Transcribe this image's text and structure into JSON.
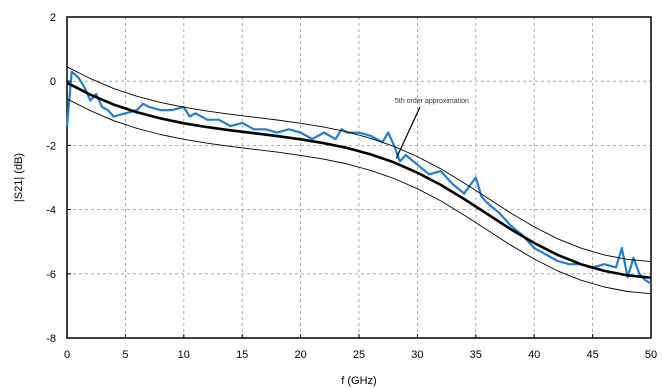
{
  "chart_data": {
    "type": "line",
    "title": "",
    "xlabel": "f (GHz)",
    "ylabel": "|S21| (dB)",
    "xlim": [
      0,
      50
    ],
    "ylim": [
      -8,
      2
    ],
    "xticks": [
      0,
      5,
      10,
      15,
      20,
      25,
      30,
      35,
      40,
      45,
      50
    ],
    "yticks": [
      -8,
      -6,
      -4,
      -2,
      0,
      2
    ],
    "grid": true,
    "annotation": {
      "text": "5th order approximation",
      "x": 28.2,
      "y": -2.4
    },
    "series": [
      {
        "name": "",
        "color": "#1f7fd6",
        "style": "measured",
        "x": [
          0,
          0.4,
          1,
          1.5,
          2,
          2.5,
          3,
          3.5,
          4,
          5,
          6,
          6.5,
          7,
          8,
          9,
          10,
          10.5,
          11,
          12,
          13,
          14,
          15,
          16,
          17,
          18,
          19,
          20,
          21,
          22,
          23,
          23.5,
          24,
          25,
          26,
          27,
          27.5,
          28,
          28.5,
          29,
          30,
          31,
          32,
          33,
          34,
          35,
          35.5,
          36,
          37,
          38,
          39,
          40,
          41,
          42,
          43,
          44,
          45,
          46,
          47,
          47.5,
          48,
          48.5,
          49,
          49.5,
          50
        ],
        "y": [
          -1.4,
          0.3,
          0.1,
          -0.2,
          -0.6,
          -0.4,
          -0.8,
          -0.9,
          -1.1,
          -1.0,
          -0.9,
          -0.7,
          -0.8,
          -0.9,
          -0.9,
          -0.8,
          -1.1,
          -1.0,
          -1.2,
          -1.2,
          -1.4,
          -1.3,
          -1.5,
          -1.5,
          -1.6,
          -1.5,
          -1.6,
          -1.8,
          -1.6,
          -1.8,
          -1.5,
          -1.6,
          -1.6,
          -1.7,
          -1.9,
          -1.6,
          -2.0,
          -2.5,
          -2.3,
          -2.6,
          -2.9,
          -2.8,
          -3.2,
          -3.5,
          -3.0,
          -3.6,
          -3.8,
          -4.1,
          -4.5,
          -4.8,
          -5.2,
          -5.4,
          -5.6,
          -5.7,
          -5.7,
          -5.8,
          -5.7,
          -5.8,
          -5.2,
          -6.1,
          -5.5,
          -6.0,
          -6.2,
          -6.3
        ]
      },
      {
        "name": "",
        "color": "#000000",
        "style": "approximation",
        "x": [
          0,
          2,
          4,
          6,
          8,
          10,
          12,
          14,
          16,
          18,
          20,
          22,
          24,
          26,
          28,
          30,
          32,
          34,
          36,
          38,
          40,
          42,
          44,
          46,
          48,
          50
        ],
        "y": [
          -0.05,
          -0.42,
          -0.73,
          -0.97,
          -1.16,
          -1.31,
          -1.43,
          -1.53,
          -1.62,
          -1.71,
          -1.81,
          -1.93,
          -2.08,
          -2.28,
          -2.53,
          -2.85,
          -3.23,
          -3.67,
          -4.14,
          -4.61,
          -5.04,
          -5.41,
          -5.7,
          -5.91,
          -6.05,
          -6.12
        ]
      },
      {
        "name": "",
        "color": "#000000",
        "style": "upper-bound",
        "x": [
          0,
          2,
          4,
          6,
          8,
          10,
          12,
          14,
          16,
          18,
          20,
          22,
          24,
          26,
          28,
          30,
          32,
          34,
          36,
          38,
          40,
          42,
          44,
          46,
          48,
          50
        ],
        "y": [
          0.45,
          0.08,
          -0.23,
          -0.47,
          -0.66,
          -0.81,
          -0.93,
          -1.03,
          -1.12,
          -1.21,
          -1.31,
          -1.43,
          -1.58,
          -1.78,
          -2.03,
          -2.35,
          -2.73,
          -3.17,
          -3.64,
          -4.11,
          -4.54,
          -4.91,
          -5.2,
          -5.41,
          -5.55,
          -5.62
        ]
      },
      {
        "name": "",
        "color": "#000000",
        "style": "lower-bound",
        "x": [
          0,
          2,
          4,
          6,
          8,
          10,
          12,
          14,
          16,
          18,
          20,
          22,
          24,
          26,
          28,
          30,
          32,
          34,
          36,
          38,
          40,
          42,
          44,
          46,
          48,
          50
        ],
        "y": [
          -0.55,
          -0.92,
          -1.23,
          -1.47,
          -1.66,
          -1.81,
          -1.93,
          -2.03,
          -2.12,
          -2.21,
          -2.31,
          -2.43,
          -2.58,
          -2.78,
          -3.03,
          -3.35,
          -3.73,
          -4.17,
          -4.64,
          -5.11,
          -5.54,
          -5.91,
          -6.2,
          -6.41,
          -6.55,
          -6.62
        ]
      }
    ]
  }
}
